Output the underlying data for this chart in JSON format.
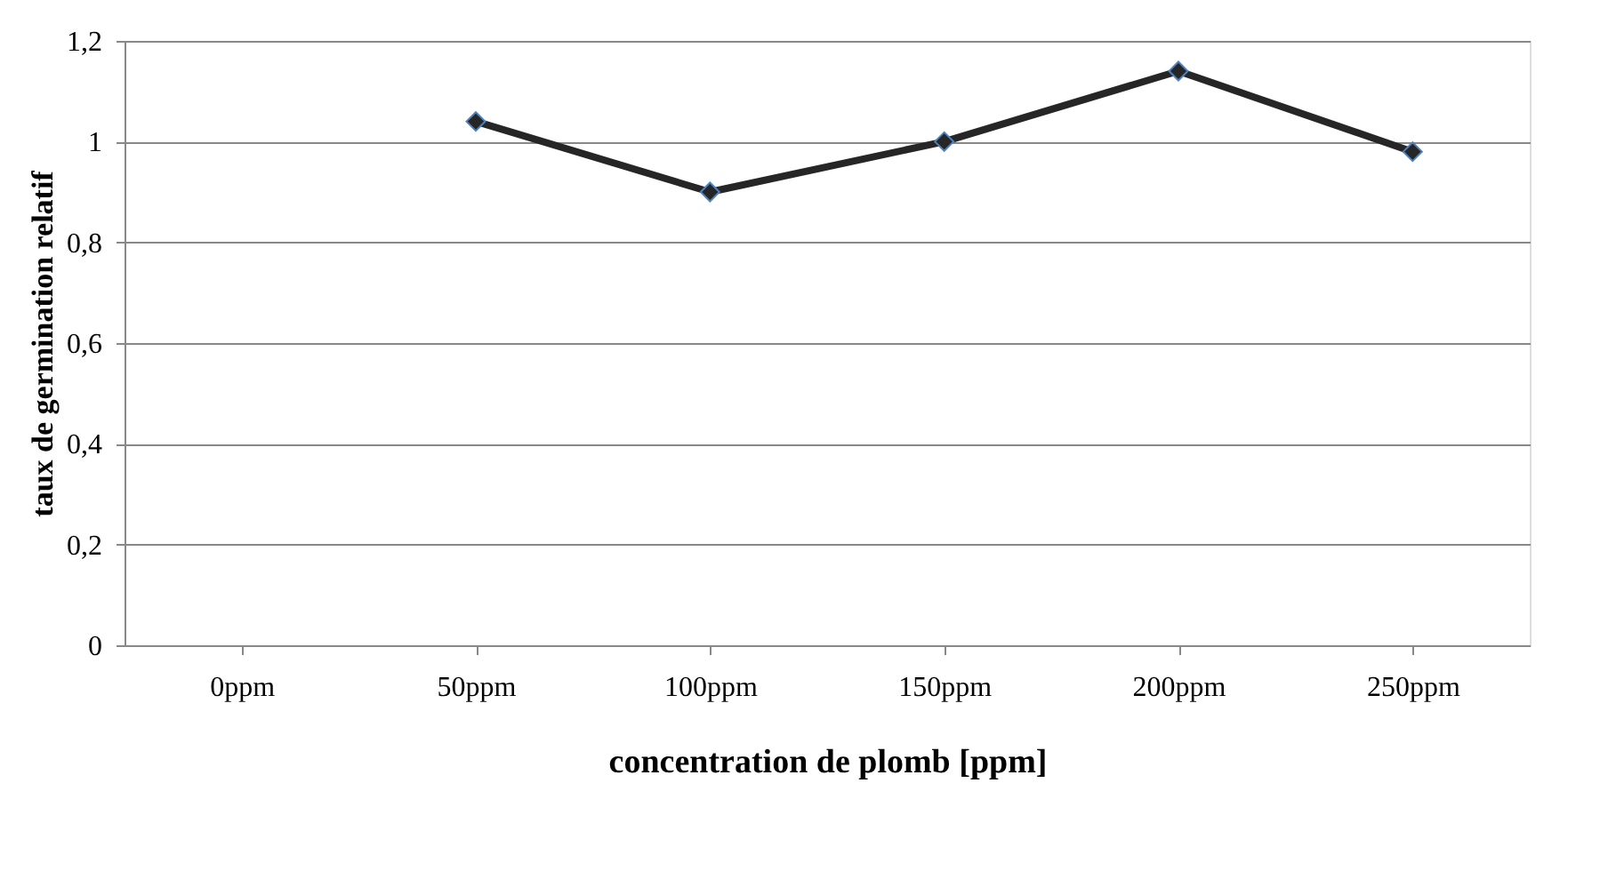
{
  "chart_data": {
    "type": "line",
    "xlabel": "concentration de plomb [ppm]",
    "ylabel": "taux de germination relatif",
    "categories": [
      "0ppm",
      "50ppm",
      "100ppm",
      "150ppm",
      "200ppm",
      "250ppm"
    ],
    "series": [
      {
        "color": "#262626",
        "values": [
          null,
          1.04,
          0.9,
          1.0,
          1.14,
          0.98
        ]
      }
    ],
    "ylim": [
      0,
      1.2
    ],
    "yticks": [
      0,
      {
        "value": 0.2,
        "label": "0,2"
      },
      {
        "value": 0.4,
        "label": "0,4"
      },
      {
        "value": 0.6,
        "label": "0,6"
      },
      {
        "value": 0.8,
        "label": "0,8"
      },
      1,
      {
        "value": 1.2,
        "label": "1,2"
      }
    ],
    "grid": "y",
    "marker": "diamond",
    "line_style": "solid"
  }
}
